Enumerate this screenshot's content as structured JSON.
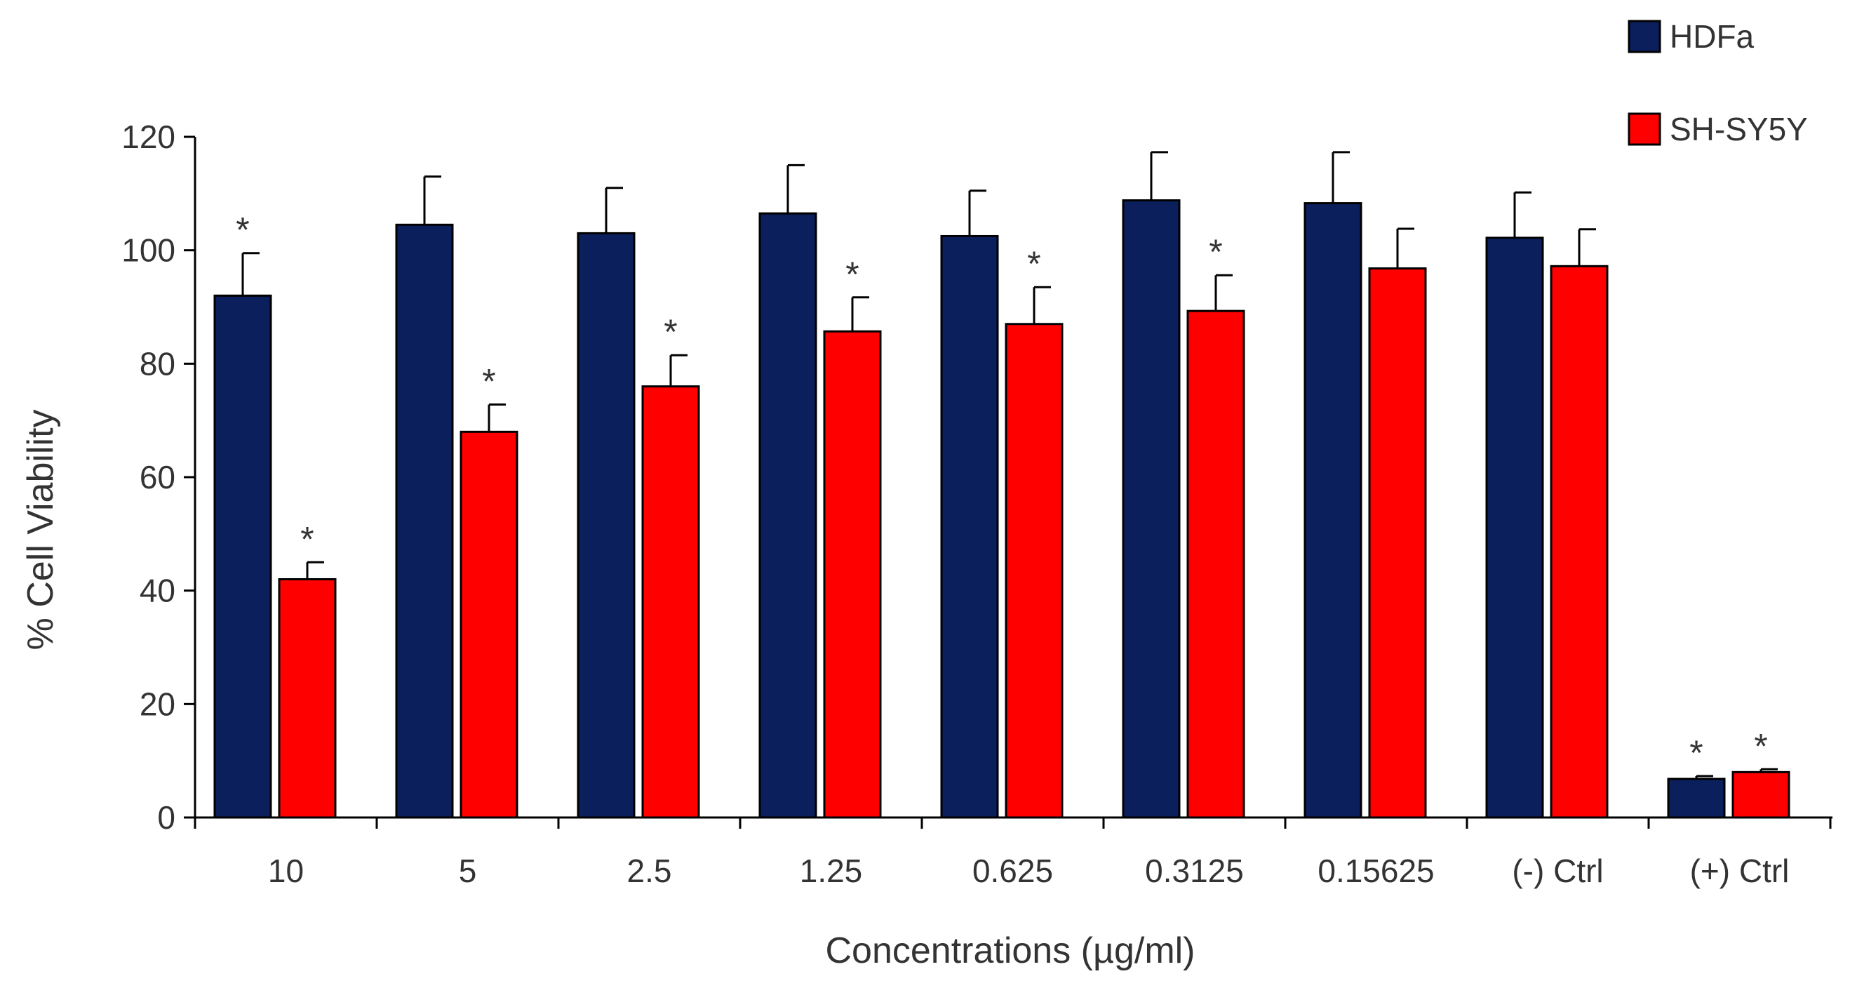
{
  "chart_data": {
    "type": "bar",
    "title": "",
    "xlabel": "Concentrations (µg/ml)",
    "ylabel": "% Cell Viability",
    "ylim": [
      0,
      120
    ],
    "yticks": [
      "0",
      "20",
      "40",
      "60",
      "80",
      "100",
      "120"
    ],
    "categories": [
      "10",
      "5",
      "2.5",
      "1.25",
      "0.625",
      "0.3125",
      "0.15625",
      "(-) Ctrl",
      "(+) Ctrl"
    ],
    "legend_position": "top-right",
    "series": [
      {
        "name": "HDFa",
        "color": "#0a1f5c",
        "values": [
          92,
          104.5,
          103,
          106.5,
          102.5,
          108.8,
          108.3,
          102.2,
          6.8
        ],
        "errors": [
          7.5,
          8.5,
          8,
          8.5,
          8,
          8.5,
          9,
          8,
          0.5
        ],
        "significant": [
          true,
          false,
          false,
          false,
          false,
          false,
          false,
          false,
          true
        ]
      },
      {
        "name": "SH-SY5Y",
        "color": "#ff0000",
        "values": [
          42,
          68,
          76,
          85.7,
          87,
          89.3,
          96.8,
          97.2,
          8
        ],
        "errors": [
          3,
          4.8,
          5.5,
          6,
          6.5,
          6.3,
          7,
          6.5,
          0.5
        ],
        "significant": [
          true,
          true,
          true,
          true,
          true,
          true,
          false,
          false,
          true
        ]
      }
    ],
    "annotation_symbol": "*"
  }
}
